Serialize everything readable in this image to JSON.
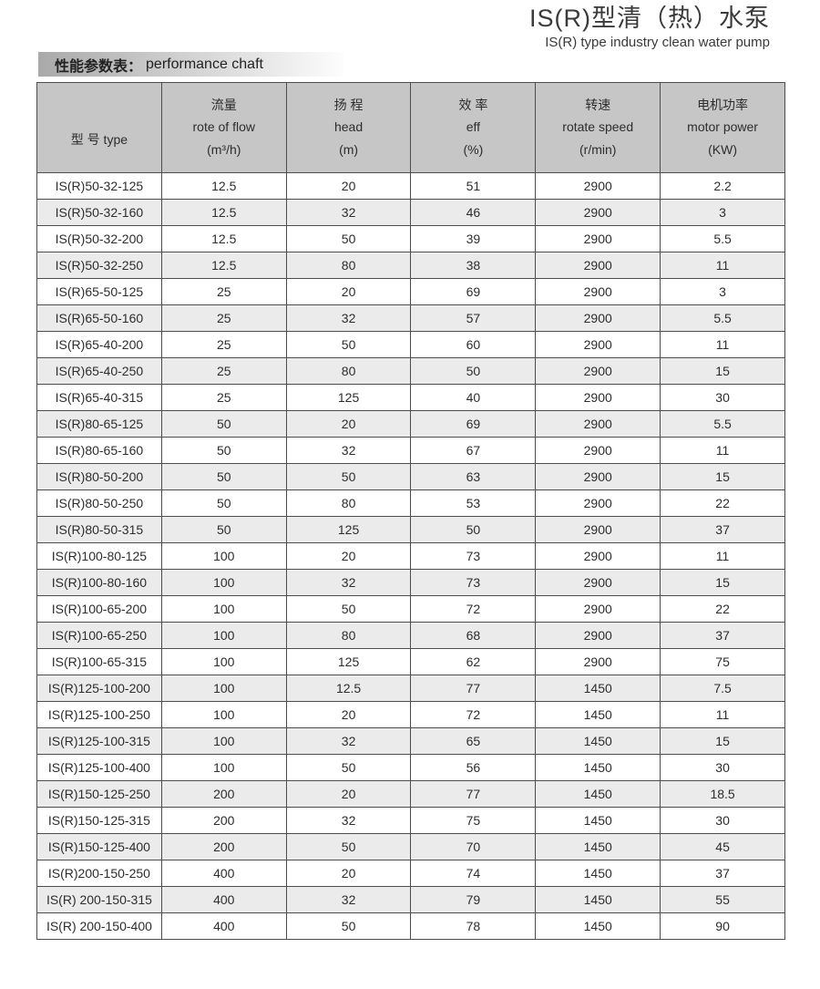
{
  "page": {
    "title_zh": "IS(R)型清（热）水泵",
    "title_en": "IS(R) type industry clean water pump",
    "section_zh": "性能参数表：",
    "section_en": "performance chaft"
  },
  "colors": {
    "header_bg": "#c6c6c6",
    "stripe_bg": "#ebebeb",
    "border": "#4d4d4d",
    "band_gradient_start": "#a9a9a9",
    "band_gradient_end": "#fdfdfd"
  },
  "table": {
    "columns": [
      {
        "label": "型  号  type"
      },
      {
        "zh": "流量",
        "en": "rote of flow",
        "unit": "(m³/h)"
      },
      {
        "zh": "扬  程",
        "en": "head",
        "unit": "(m)"
      },
      {
        "zh": "效  率",
        "en": "eff",
        "unit": "(%)"
      },
      {
        "zh": "转速",
        "en": "rotate speed",
        "unit": "(r/min)"
      },
      {
        "zh": "电机功率",
        "en": "motor power",
        "unit": "(KW)"
      }
    ],
    "rows": [
      [
        "IS(R)50-32-125",
        "12.5",
        "20",
        "51",
        "2900",
        "2.2"
      ],
      [
        "IS(R)50-32-160",
        "12.5",
        "32",
        "46",
        "2900",
        "3"
      ],
      [
        "IS(R)50-32-200",
        "12.5",
        "50",
        "39",
        "2900",
        "5.5"
      ],
      [
        "IS(R)50-32-250",
        "12.5",
        "80",
        "38",
        "2900",
        "11"
      ],
      [
        "IS(R)65-50-125",
        "25",
        "20",
        "69",
        "2900",
        "3"
      ],
      [
        "IS(R)65-50-160",
        "25",
        "32",
        "57",
        "2900",
        "5.5"
      ],
      [
        "IS(R)65-40-200",
        "25",
        "50",
        "60",
        "2900",
        "11"
      ],
      [
        "IS(R)65-40-250",
        "25",
        "80",
        "50",
        "2900",
        "15"
      ],
      [
        "IS(R)65-40-315",
        "25",
        "125",
        "40",
        "2900",
        "30"
      ],
      [
        "IS(R)80-65-125",
        "50",
        "20",
        "69",
        "2900",
        "5.5"
      ],
      [
        "IS(R)80-65-160",
        "50",
        "32",
        "67",
        "2900",
        "11"
      ],
      [
        "IS(R)80-50-200",
        "50",
        "50",
        "63",
        "2900",
        "15"
      ],
      [
        "IS(R)80-50-250",
        "50",
        "80",
        "53",
        "2900",
        "22"
      ],
      [
        "IS(R)80-50-315",
        "50",
        "125",
        "50",
        "2900",
        "37"
      ],
      [
        "IS(R)100-80-125",
        "100",
        "20",
        "73",
        "2900",
        "11"
      ],
      [
        "IS(R)100-80-160",
        "100",
        "32",
        "73",
        "2900",
        "15"
      ],
      [
        "IS(R)100-65-200",
        "100",
        "50",
        "72",
        "2900",
        "22"
      ],
      [
        "IS(R)100-65-250",
        "100",
        "80",
        "68",
        "2900",
        "37"
      ],
      [
        "IS(R)100-65-315",
        "100",
        "125",
        "62",
        "2900",
        "75"
      ],
      [
        "IS(R)125-100-200",
        "100",
        "12.5",
        "77",
        "1450",
        "7.5"
      ],
      [
        "IS(R)125-100-250",
        "100",
        "20",
        "72",
        "1450",
        "11"
      ],
      [
        "IS(R)125-100-315",
        "100",
        "32",
        "65",
        "1450",
        "15"
      ],
      [
        "IS(R)125-100-400",
        "100",
        "50",
        "56",
        "1450",
        "30"
      ],
      [
        "IS(R)150-125-250",
        "200",
        "20",
        "77",
        "1450",
        "18.5"
      ],
      [
        "IS(R)150-125-315",
        "200",
        "32",
        "75",
        "1450",
        "30"
      ],
      [
        "IS(R)150-125-400",
        "200",
        "50",
        "70",
        "1450",
        "45"
      ],
      [
        "IS(R)200-150-250",
        "400",
        "20",
        "74",
        "1450",
        "37"
      ],
      [
        "IS(R) 200-150-315",
        "400",
        "32",
        "79",
        "1450",
        "55"
      ],
      [
        "IS(R) 200-150-400",
        "400",
        "50",
        "78",
        "1450",
        "90"
      ]
    ],
    "cell_names": [
      "cell-type",
      "cell-flow",
      "cell-head",
      "cell-eff",
      "cell-speed",
      "cell-power"
    ]
  }
}
